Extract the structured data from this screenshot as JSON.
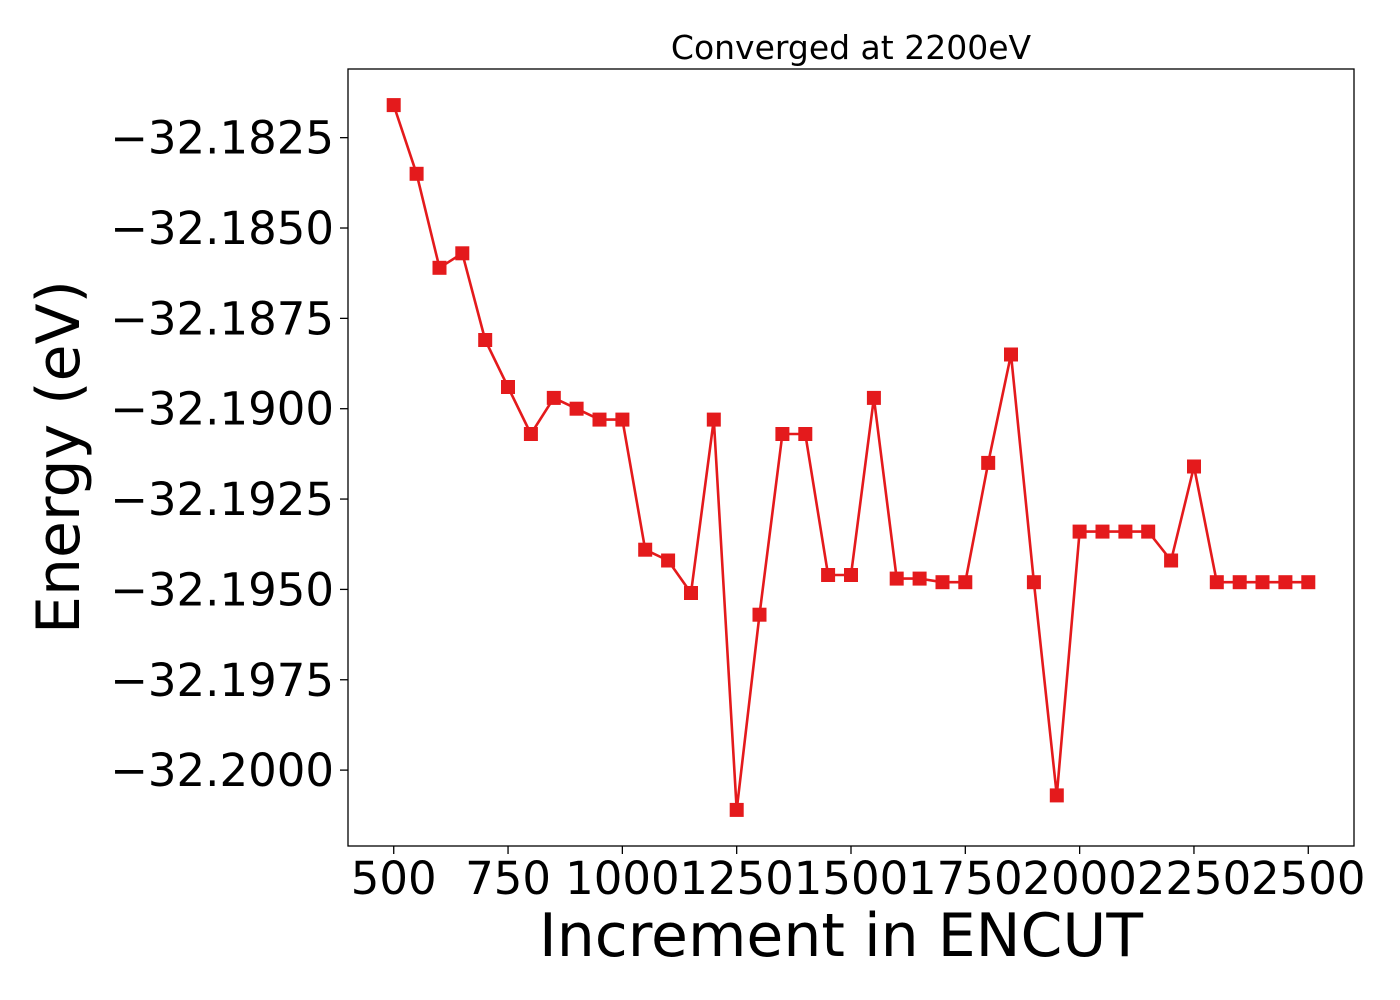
{
  "chart_data": {
    "type": "line",
    "title": "Converged at 2200eV",
    "xlabel": "Increment in ENCUT",
    "ylabel": "Energy (eV)",
    "xlim": [
      400,
      2600
    ],
    "ylim": [
      -32.2021,
      -32.1806
    ],
    "x_ticks": [
      500,
      750,
      1000,
      1250,
      1500,
      1750,
      2000,
      2250,
      2500
    ],
    "x_tick_labels": [
      "500",
      "750",
      "1000",
      "1250",
      "1500",
      "1750",
      "2000",
      "2250",
      "2500"
    ],
    "y_ticks": [
      -32.1825,
      -32.185,
      -32.1875,
      -32.19,
      -32.1925,
      -32.195,
      -32.1975,
      -32.2
    ],
    "y_tick_labels": [
      "−32.1825",
      "−32.1850",
      "−32.1875",
      "−32.1900",
      "−32.1925",
      "−32.1950",
      "−32.1975",
      "−32.2000"
    ],
    "grid": false,
    "series": [
      {
        "color": "#e41a1c",
        "marker": "square",
        "x": [
          500,
          550,
          600,
          650,
          700,
          750,
          800,
          850,
          900,
          950,
          1000,
          1050,
          1100,
          1150,
          1200,
          1250,
          1300,
          1350,
          1400,
          1450,
          1500,
          1550,
          1600,
          1650,
          1700,
          1750,
          1800,
          1850,
          1900,
          1950,
          2000,
          2050,
          2100,
          2150,
          2200,
          2250,
          2300,
          2350,
          2400,
          2450,
          2500
        ],
        "y": [
          -32.1816,
          -32.1835,
          -32.1861,
          -32.1857,
          -32.1881,
          -32.1894,
          -32.1907,
          -32.1897,
          -32.19,
          -32.1903,
          -32.1903,
          -32.1939,
          -32.1942,
          -32.1951,
          -32.1903,
          -32.2011,
          -32.1957,
          -32.1907,
          -32.1907,
          -32.1946,
          -32.1946,
          -32.1897,
          -32.1947,
          -32.1947,
          -32.1948,
          -32.1948,
          -32.1915,
          -32.1885,
          -32.1948,
          -32.2007,
          -32.1934,
          -32.1934,
          -32.1934,
          -32.1934,
          -32.1942,
          -32.1916,
          -32.1948,
          -32.1948,
          -32.1948,
          -32.1948,
          -32.1948
        ]
      }
    ]
  }
}
